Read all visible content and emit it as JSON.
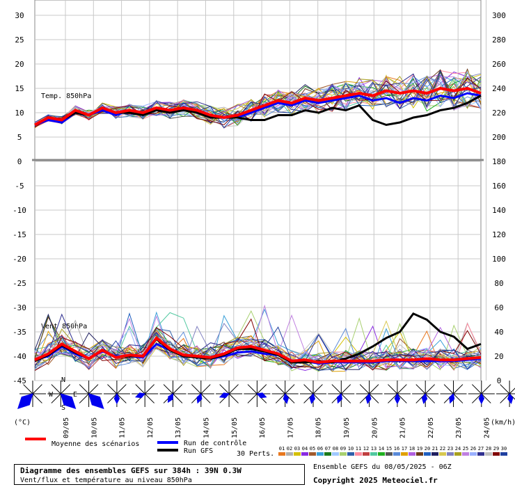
{
  "chart_data": {
    "type": "line",
    "title": "Diagramme des ensembles GEFS sur 384h : 39N 0.3W",
    "subtitle": "Vent/flux et température au niveau 850hPa",
    "ensemble_info": "Ensemble GEFS du 08/05/2025 - 06Z",
    "copyright": "Copyright 2025 Meteociel.fr",
    "left_axis_ticks": [
      "30",
      "25",
      "20",
      "15",
      "10",
      "5",
      "0",
      "-5",
      "-10",
      "-15",
      "-20",
      "-25",
      "-30",
      "-35",
      "-40",
      "-45"
    ],
    "right_axis_ticks": [
      "300",
      "280",
      "260",
      "240",
      "220",
      "200",
      "180",
      "160",
      "140",
      "120",
      "100",
      "80",
      "60",
      "40",
      "20",
      "0"
    ],
    "left_unit": "(°C)",
    "right_unit": "(km/h)",
    "x_dates": [
      "09/05",
      "10/05",
      "11/05",
      "12/05",
      "13/05",
      "14/05",
      "15/05",
      "16/05",
      "17/05",
      "18/05",
      "19/05",
      "20/05",
      "21/05",
      "22/05",
      "23/05",
      "24/05"
    ],
    "temp_panel_label": "Temp. 850hPa",
    "wind_panel_label": "Vent 850hPa",
    "legend": {
      "mean": "Moyenne des scénarios",
      "control": "Run de contrôle",
      "gfs": "Run GFS",
      "perts": "30 Perts.",
      "pert_ids": [
        "01",
        "02",
        "03",
        "04",
        "05",
        "06",
        "07",
        "08",
        "09",
        "10",
        "11",
        "12",
        "13",
        "14",
        "15",
        "16",
        "17",
        "18",
        "19",
        "20",
        "21",
        "22",
        "23",
        "24",
        "25",
        "26",
        "27",
        "28",
        "29",
        "30"
      ]
    },
    "pert_colors": [
      "#e87820",
      "#b0b0b0",
      "#d4c000",
      "#8a2be2",
      "#a05a2c",
      "#3aa0d8",
      "#1b7a1b",
      "#a0c8ff",
      "#a8d070",
      "#2f5faa",
      "#ff8ca0",
      "#c04040",
      "#50c8a0",
      "#20b020",
      "#555555",
      "#5a8ad8",
      "#e0a000",
      "#b060e0",
      "#6a3a1a",
      "#2060c0",
      "#202060",
      "#d8c850",
      "#8080c0",
      "#a8a020",
      "#c080e0",
      "#9ab0ff",
      "#303090",
      "#c0c0c0",
      "#800000",
      "#2040a0"
    ],
    "colors": {
      "mean": "#ff0000",
      "control": "#0000ff",
      "gfs": "#000000"
    },
    "mean_temperature_c": [
      7.5,
      9,
      8.5,
      10.5,
      9.5,
      11,
      10,
      10.5,
      10,
      11,
      10.5,
      11,
      10.5,
      9.5,
      9,
      9.5,
      10.5,
      11.5,
      12.5,
      12,
      13,
      12.5,
      13,
      13.5,
      14,
      13.5,
      14.5,
      14,
      14.5,
      14,
      15,
      14.5,
      15,
      14
    ],
    "control_temperature_c": [
      7.5,
      8.5,
      8,
      10,
      9.5,
      10.5,
      9.5,
      10.5,
      10,
      11,
      10,
      11,
      10.5,
      9.5,
      9,
      9,
      10,
      11,
      12,
      11.5,
      12.5,
      12,
      12.5,
      13,
      13.5,
      12.5,
      13,
      12,
      13,
      12.5,
      13.5,
      13,
      14,
      13.5
    ],
    "gfs_temperature_c": [
      7.5,
      9,
      8.5,
      10,
      9.5,
      11,
      10,
      10,
      9.5,
      10.5,
      10,
      10.5,
      10,
      9,
      9,
      9,
      8.5,
      8.5,
      9.5,
      9.5,
      10.5,
      10,
      11,
      10.5,
      11.5,
      8.5,
      7.5,
      8,
      9,
      9.5,
      10.5,
      11,
      12,
      13.5
    ],
    "mean_wind_kmh": [
      17,
      22,
      30,
      24,
      18,
      25,
      19,
      21,
      20,
      35,
      26,
      21,
      20,
      19,
      22,
      27,
      28,
      25,
      22,
      16,
      17,
      15,
      16,
      16,
      16,
      16,
      17,
      17,
      17,
      18,
      17,
      17,
      18,
      19
    ],
    "control_wind_kmh": [
      17,
      20,
      28,
      22,
      18,
      24,
      20,
      20,
      19,
      30,
      25,
      20,
      19,
      18,
      20,
      23,
      24,
      22,
      21,
      15,
      16,
      14,
      15,
      15,
      15,
      15,
      16,
      16,
      16,
      16,
      16,
      16,
      17,
      18
    ],
    "gfs_wind_kmh": [
      16,
      21,
      29,
      23,
      18,
      25,
      19,
      20,
      20,
      34,
      25,
      20,
      19,
      18,
      21,
      26,
      26,
      24,
      21,
      15,
      15,
      16,
      15,
      18,
      22,
      28,
      35,
      40,
      55,
      50,
      40,
      36,
      26,
      30
    ],
    "wind_directions_deg": [
      225,
      135,
      135,
      180,
      250,
      210,
      200,
      250,
      110,
      170,
      190,
      200,
      190,
      180,
      190,
      200,
      180,
      170
    ]
  }
}
